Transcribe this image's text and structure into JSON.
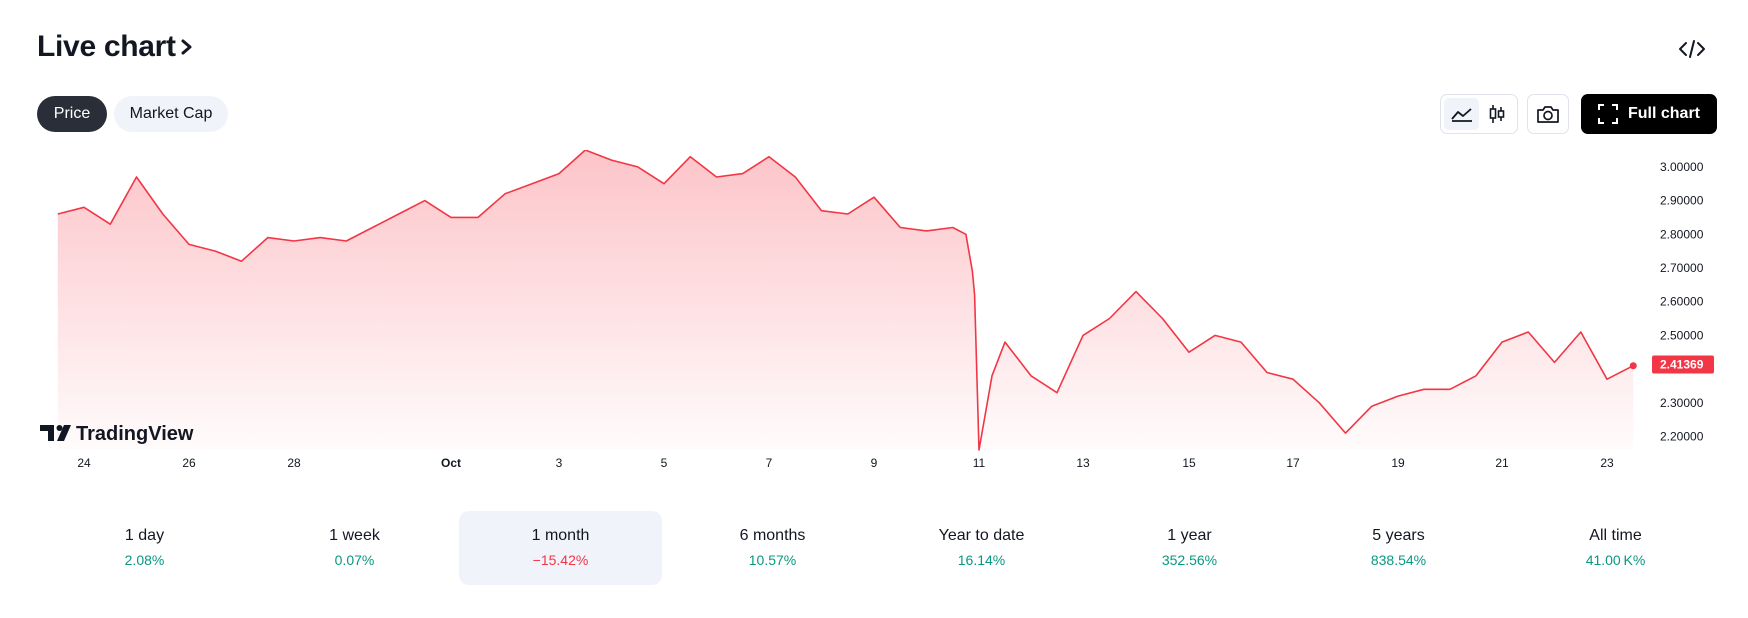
{
  "header": {
    "title": "Live chart"
  },
  "toggles": {
    "price_label": "Price",
    "market_cap_label": "Market Cap"
  },
  "toolbar": {
    "full_chart_label": "Full chart"
  },
  "branding": {
    "tradingview_label": "TradingView"
  },
  "colors": {
    "line": "#f23645",
    "fill": "#f7525f",
    "positive": "#089981",
    "negative": "#f23645",
    "button_dark": "#000000"
  },
  "chart_data": {
    "type": "area",
    "title": "",
    "xlabel": "",
    "ylabel": "",
    "x_tick_labels": [
      "24",
      "26",
      "28",
      "Oct",
      "3",
      "5",
      "7",
      "9",
      "11",
      "13",
      "15",
      "17",
      "19",
      "21",
      "23"
    ],
    "y_tick_labels": [
      "3.00000",
      "2.90000",
      "2.80000",
      "2.70000",
      "2.60000",
      "2.50000",
      "2.30000",
      "2.20000"
    ],
    "y_ticks": [
      3.0,
      2.9,
      2.8,
      2.7,
      2.6,
      2.5,
      2.3,
      2.2
    ],
    "ylim": [
      2.16,
      3.05
    ],
    "last_price": "2.41369",
    "grid": false,
    "series": [
      {
        "x": [
          "Sep 23 12:00",
          "Sep 24",
          "Sep 24 12:00",
          "Sep 25",
          "Sep 25 12:00",
          "Sep 26",
          "Sep 26 12:00",
          "Sep 27",
          "Sep 27 12:00",
          "Sep 28",
          "Sep 28 12:00",
          "Sep 29",
          "Sep 29 12:00",
          "Sep 30",
          "Sep 30 12:00",
          "Oct 1",
          "Oct 1 12:00",
          "Oct 2",
          "Oct 2 12:00",
          "Oct 3",
          "Oct 3 12:00",
          "Oct 4",
          "Oct 4 12:00",
          "Oct 5",
          "Oct 5 12:00",
          "Oct 6",
          "Oct 6 12:00",
          "Oct 7",
          "Oct 7 12:00",
          "Oct 8",
          "Oct 8 12:00",
          "Oct 9",
          "Oct 9 12:00",
          "Oct 10",
          "Oct 10 12:00",
          "Oct 10 18:00",
          "Oct 10 21:00",
          "Oct 10 22:00",
          "Oct 11",
          "Oct 11 06:00",
          "Oct 11 12:00",
          "Oct 12",
          "Oct 12 12:00",
          "Oct 13",
          "Oct 13 12:00",
          "Oct 14",
          "Oct 14 12:00",
          "Oct 15",
          "Oct 15 12:00",
          "Oct 16",
          "Oct 16 12:00",
          "Oct 17",
          "Oct 17 12:00",
          "Oct 18",
          "Oct 18 12:00",
          "Oct 19",
          "Oct 19 12:00",
          "Oct 20",
          "Oct 20 12:00",
          "Oct 21",
          "Oct 21 12:00",
          "Oct 22",
          "Oct 22 12:00",
          "Oct 23",
          "Oct 23 12:00"
        ],
        "values": [
          2.86,
          2.88,
          2.83,
          2.97,
          2.86,
          2.77,
          2.75,
          2.72,
          2.79,
          2.78,
          2.79,
          2.78,
          2.82,
          2.86,
          2.9,
          2.85,
          2.85,
          2.92,
          2.95,
          2.98,
          3.05,
          3.02,
          3.0,
          2.95,
          3.03,
          2.97,
          2.98,
          3.03,
          2.97,
          2.87,
          2.86,
          2.91,
          2.82,
          2.81,
          2.82,
          2.8,
          2.69,
          2.62,
          2.16,
          2.38,
          2.48,
          2.38,
          2.33,
          2.5,
          2.55,
          2.63,
          2.55,
          2.45,
          2.5,
          2.48,
          2.39,
          2.37,
          2.3,
          2.21,
          2.29,
          2.32,
          2.34,
          2.34,
          2.38,
          2.48,
          2.51,
          2.42,
          2.51,
          2.37,
          2.41
        ]
      }
    ]
  },
  "periods": [
    {
      "label": "1 day",
      "change": "2.08%",
      "trend": "pos"
    },
    {
      "label": "1 week",
      "change": "0.07%",
      "trend": "pos"
    },
    {
      "label": "1 month",
      "change": "−15.42%",
      "trend": "neg",
      "selected": true
    },
    {
      "label": "6 months",
      "change": "10.57%",
      "trend": "pos"
    },
    {
      "label": "Year to date",
      "change": "16.14%",
      "trend": "pos"
    },
    {
      "label": "1 year",
      "change": "352.56%",
      "trend": "pos"
    },
    {
      "label": "5 years",
      "change": "838.54%",
      "trend": "pos"
    },
    {
      "label": "All time",
      "change": "41.00 K%",
      "trend": "pos"
    }
  ]
}
